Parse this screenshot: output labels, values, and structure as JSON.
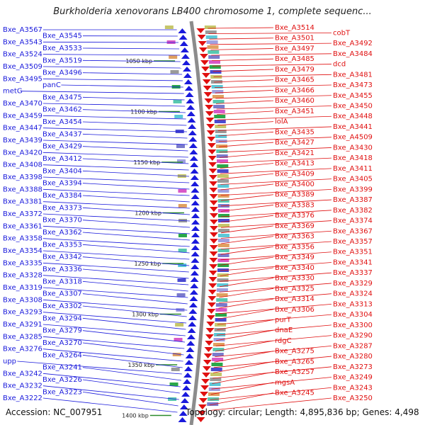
{
  "title": "Burkholderia xenovorans LB400 chromosome 1, complete sequenc...",
  "footer": {
    "accession": "Accession: NC_007951",
    "topology": "Topology: circular; Length: 4,895,836 bp; Genes: 4,498"
  },
  "colors": {
    "left_labels": "#1a1adc",
    "right_labels": "#e01010",
    "backbone": "#8c8c8c",
    "kbp_tick": "#2a8a2a"
  },
  "kbp_ticks": [
    "1050 kbp",
    "1100 kbp",
    "1150 kbp",
    "1200 kbp",
    "1250 kbp",
    "1300 kbp",
    "1350 kbp",
    "1400 kbp"
  ],
  "left_labels": [
    "Bxe_A3567",
    "Bxe_A3545",
    "Bxe_A3543",
    "Bxe_A3533",
    "Bxe_A3524",
    "Bxe_A3519",
    "Bxe_A3509",
    "Bxe_A3496",
    "Bxe_A3495",
    "panC",
    "metG",
    "Bxe_A3475",
    "Bxe_A3470",
    "Bxe_A3462",
    "Bxe_A3459",
    "Bxe_A3454",
    "Bxe_A3447",
    "Bxe_A3437",
    "Bxe_A3439",
    "Bxe_A3429",
    "Bxe_A3420",
    "Bxe_A3412",
    "Bxe_A3408",
    "Bxe_A3404",
    "Bxe_A3398",
    "Bxe_A3394",
    "Bxe_A3388",
    "Bxe_A3384",
    "Bxe_A3381",
    "Bxe_A3373",
    "Bxe_A3372",
    "Bxe_A3370",
    "Bxe_A3361",
    "Bxe_A3362",
    "Bxe_A3358",
    "Bxe_A3353",
    "Bxe_A3354",
    "Bxe_A3342",
    "Bxe_A3335",
    "Bxe_A3336",
    "Bxe_A3328",
    "Bxe_A3318",
    "Bxe_A3319",
    "Bxe_A3307",
    "Bxe_A3308",
    "Bxe_A3302",
    "Bxe_A3293",
    "Bxe_A3294",
    "Bxe_A3291",
    "Bxe_A3279",
    "Bxe_A3285",
    "Bxe_A3270",
    "Bxe_A3276",
    "Bxe_A3264",
    "upp",
    "Bxe_A3241",
    "Bxe_A3242",
    "Bxe_A3226",
    "Bxe_A3232",
    "Bxe_A3223",
    "Bxe_A3222"
  ],
  "right_labels": [
    "Bxe_A3514",
    "cobT",
    "Bxe_A3501",
    "Bxe_A3492",
    "Bxe_A3497",
    "Bxe_A3484",
    "Bxe_A3485",
    "dcd",
    "Bxe_A3479",
    "Bxe_A3481",
    "Bxe_A3465",
    "Bxe_A3473",
    "Bxe_A3466",
    "Bxe_A3455",
    "Bxe_A3460",
    "Bxe_A3450",
    "Bxe_A3451",
    "Bxe_A3448",
    "lolA",
    "Bxe_A3441",
    "Bxe_A3435",
    "Bxe_A4509",
    "Bxe_A3427",
    "Bxe_A3430",
    "Bxe_A3421",
    "Bxe_A3418",
    "Bxe_A3413",
    "Bxe_A3411",
    "Bxe_A3409",
    "Bxe_A3405",
    "Bxe_A3400",
    "Bxe_A3399",
    "Bxe_A3389",
    "Bxe_A3387",
    "Bxe_A3383",
    "Bxe_A3382",
    "Bxe_A3376",
    "Bxe_A3374",
    "Bxe_A3369",
    "Bxe_A3367",
    "Bxe_A3363",
    "Bxe_A3357",
    "Bxe_A3356",
    "Bxe_A3351",
    "Bxe_A3349",
    "Bxe_A3341",
    "Bxe_A3340",
    "Bxe_A3337",
    "Bxe_A3330",
    "Bxe_A3329",
    "Bxe_A3325",
    "Bxe_A3324",
    "Bxe_A3314",
    "Bxe_A3313",
    "Bxe_A3306",
    "Bxe_A3304",
    "purT",
    "Bxe_A3300",
    "dnaE",
    "Bxe_A3290",
    "rdgC",
    "Bxe_A3287",
    "Bxe_A3275",
    "Bxe_A3280",
    "Bxe_A3265",
    "Bxe_A3273",
    "Bxe_A3257",
    "Bxe_A3249",
    "mgsA",
    "Bxe_A3243",
    "Bxe_A3245",
    "Bxe_A3250"
  ]
}
